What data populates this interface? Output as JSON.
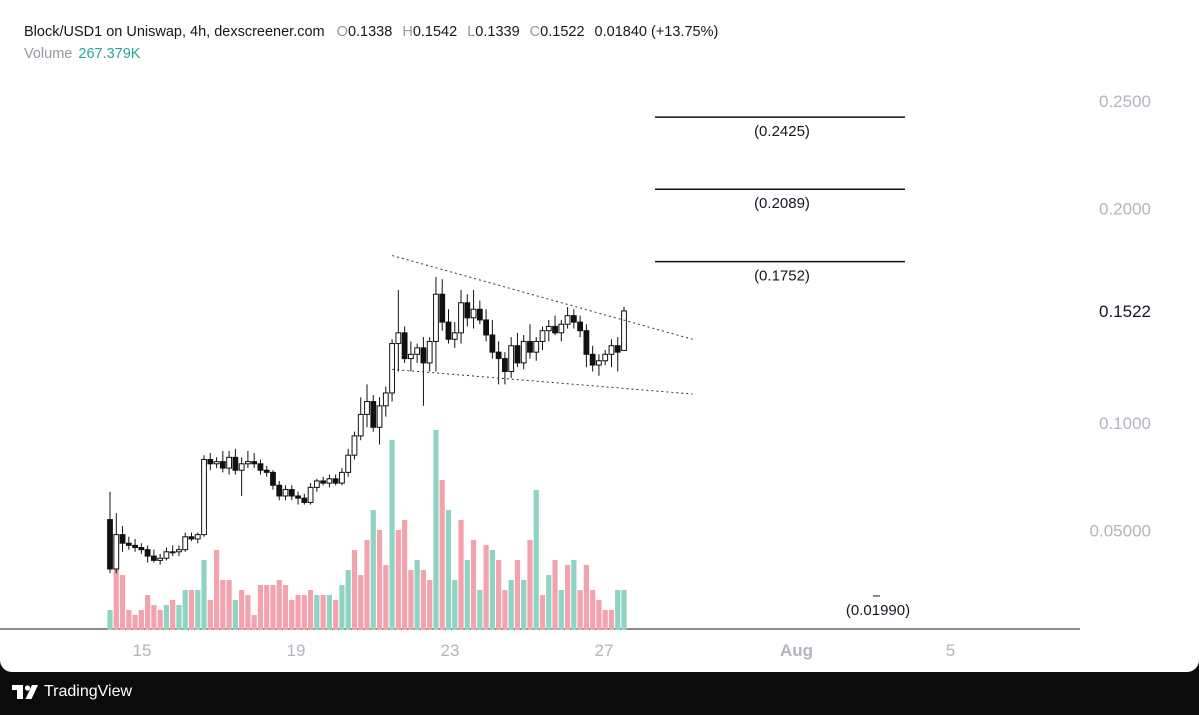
{
  "header": {
    "symbol": "Block/USD1 on Uniswap, 4h, dexscreener.com",
    "o_label": "O",
    "o_value": "0.1338",
    "h_label": "H",
    "h_value": "0.1542",
    "l_label": "L",
    "l_value": "0.1339",
    "c_label": "C",
    "c_value": "0.1522",
    "change": "0.01840 (+13.75%)",
    "volume_label": "Volume",
    "volume_value": "267.379K"
  },
  "footer": {
    "brand": "TradingView",
    "logo_icon": "tradingview-logo-icon"
  },
  "colors": {
    "up_volume": "#8fd3c3",
    "down_volume": "#f2a3ad",
    "candle": "#111111",
    "axis_text": "#b2b5be",
    "last_price_text": "#131722"
  },
  "chart_data": {
    "type": "candlestick",
    "timeframe": "4h",
    "y_ticks": [
      "0.2500",
      "0.2000",
      "0.1000",
      "0.05000"
    ],
    "y_tick_values": [
      0.25,
      0.2,
      0.1,
      0.05
    ],
    "last_price_label": "0.1522",
    "last_price": 0.1522,
    "x_ticks": [
      "15",
      "19",
      "23",
      "27",
      "Aug",
      "5"
    ],
    "x_tick_days": [
      15,
      19,
      23,
      27,
      32,
      36
    ],
    "ylim": [
      0.0,
      0.26
    ],
    "levels": [
      {
        "label": "(0.2425)",
        "value": 0.2425
      },
      {
        "label": "(0.2089)",
        "value": 0.2089
      },
      {
        "label": "(0.1752)",
        "value": 0.1752
      },
      {
        "label": "(0.01990)",
        "value": 0.0199
      }
    ],
    "trendlines": [
      {
        "name": "upper-trendline",
        "from": [
          21.5,
          0.178
        ],
        "to": [
          29.3,
          0.139
        ]
      },
      {
        "name": "lower-trendline",
        "from": [
          21.5,
          0.125
        ],
        "to": [
          29.3,
          0.1135
        ]
      }
    ],
    "candles": [
      [
        0.055,
        0.068,
        0.03,
        0.032
      ],
      [
        0.032,
        0.058,
        0.03,
        0.048
      ],
      [
        0.048,
        0.052,
        0.04,
        0.044
      ],
      [
        0.044,
        0.047,
        0.041,
        0.043
      ],
      [
        0.043,
        0.046,
        0.04,
        0.042
      ],
      [
        0.042,
        0.044,
        0.039,
        0.041
      ],
      [
        0.041,
        0.043,
        0.035,
        0.038
      ],
      [
        0.038,
        0.041,
        0.035,
        0.036
      ],
      [
        0.036,
        0.039,
        0.034,
        0.037
      ],
      [
        0.037,
        0.042,
        0.036,
        0.04
      ],
      [
        0.04,
        0.043,
        0.038,
        0.04
      ],
      [
        0.04,
        0.043,
        0.038,
        0.041
      ],
      [
        0.041,
        0.049,
        0.04,
        0.047
      ],
      [
        0.047,
        0.049,
        0.045,
        0.046
      ],
      [
        0.046,
        0.049,
        0.044,
        0.048
      ],
      [
        0.048,
        0.085,
        0.047,
        0.083
      ],
      [
        0.083,
        0.086,
        0.078,
        0.081
      ],
      [
        0.081,
        0.084,
        0.079,
        0.082
      ],
      [
        0.082,
        0.087,
        0.077,
        0.079
      ],
      [
        0.079,
        0.087,
        0.076,
        0.084
      ],
      [
        0.084,
        0.088,
        0.076,
        0.078
      ],
      [
        0.078,
        0.084,
        0.066,
        0.081
      ],
      [
        0.081,
        0.087,
        0.079,
        0.082
      ],
      [
        0.082,
        0.086,
        0.079,
        0.081
      ],
      [
        0.081,
        0.083,
        0.076,
        0.078
      ],
      [
        0.078,
        0.08,
        0.075,
        0.077
      ],
      [
        0.077,
        0.078,
        0.069,
        0.071
      ],
      [
        0.071,
        0.073,
        0.064,
        0.066
      ],
      [
        0.066,
        0.071,
        0.064,
        0.069
      ],
      [
        0.069,
        0.071,
        0.064,
        0.066
      ],
      [
        0.066,
        0.068,
        0.062,
        0.065
      ],
      [
        0.065,
        0.067,
        0.062,
        0.063
      ],
      [
        0.063,
        0.072,
        0.062,
        0.07
      ],
      [
        0.07,
        0.074,
        0.068,
        0.073
      ],
      [
        0.073,
        0.075,
        0.071,
        0.072
      ],
      [
        0.072,
        0.076,
        0.07,
        0.074
      ],
      [
        0.074,
        0.076,
        0.071,
        0.072
      ],
      [
        0.072,
        0.079,
        0.071,
        0.077
      ],
      [
        0.077,
        0.088,
        0.075,
        0.085
      ],
      [
        0.085,
        0.096,
        0.083,
        0.094
      ],
      [
        0.094,
        0.112,
        0.092,
        0.104
      ],
      [
        0.104,
        0.118,
        0.098,
        0.11
      ],
      [
        0.11,
        0.113,
        0.096,
        0.098
      ],
      [
        0.098,
        0.112,
        0.09,
        0.108
      ],
      [
        0.108,
        0.117,
        0.103,
        0.114
      ],
      [
        0.114,
        0.139,
        0.11,
        0.137
      ],
      [
        0.137,
        0.162,
        0.124,
        0.142
      ],
      [
        0.142,
        0.145,
        0.128,
        0.13
      ],
      [
        0.13,
        0.138,
        0.124,
        0.132
      ],
      [
        0.132,
        0.137,
        0.128,
        0.135
      ],
      [
        0.135,
        0.14,
        0.108,
        0.128
      ],
      [
        0.128,
        0.14,
        0.124,
        0.138
      ],
      [
        0.138,
        0.168,
        0.124,
        0.16
      ],
      [
        0.16,
        0.167,
        0.143,
        0.147
      ],
      [
        0.147,
        0.153,
        0.137,
        0.139
      ],
      [
        0.139,
        0.147,
        0.135,
        0.142
      ],
      [
        0.142,
        0.162,
        0.137,
        0.156
      ],
      [
        0.156,
        0.16,
        0.145,
        0.149
      ],
      [
        0.149,
        0.162,
        0.144,
        0.153
      ],
      [
        0.153,
        0.157,
        0.146,
        0.148
      ],
      [
        0.148,
        0.153,
        0.138,
        0.141
      ],
      [
        0.141,
        0.148,
        0.13,
        0.133
      ],
      [
        0.133,
        0.138,
        0.118,
        0.13
      ],
      [
        0.13,
        0.133,
        0.118,
        0.124
      ],
      [
        0.124,
        0.14,
        0.121,
        0.136
      ],
      [
        0.136,
        0.142,
        0.126,
        0.128
      ],
      [
        0.128,
        0.141,
        0.125,
        0.138
      ],
      [
        0.138,
        0.146,
        0.13,
        0.133
      ],
      [
        0.133,
        0.14,
        0.129,
        0.138
      ],
      [
        0.138,
        0.145,
        0.134,
        0.143
      ],
      [
        0.143,
        0.148,
        0.138,
        0.145
      ],
      [
        0.145,
        0.15,
        0.141,
        0.142
      ],
      [
        0.142,
        0.148,
        0.138,
        0.146
      ],
      [
        0.146,
        0.154,
        0.144,
        0.15
      ],
      [
        0.15,
        0.153,
        0.144,
        0.147
      ],
      [
        0.147,
        0.15,
        0.14,
        0.143
      ],
      [
        0.143,
        0.146,
        0.126,
        0.132
      ],
      [
        0.132,
        0.136,
        0.124,
        0.127
      ],
      [
        0.127,
        0.132,
        0.122,
        0.129
      ],
      [
        0.129,
        0.134,
        0.127,
        0.132
      ],
      [
        0.132,
        0.139,
        0.126,
        0.136
      ],
      [
        0.136,
        0.14,
        0.124,
        0.133
      ],
      [
        0.1338,
        0.1542,
        0.1339,
        0.1522
      ]
    ],
    "volume_scale": [
      0,
      267379
    ],
    "volumes": [
      [
        20,
        "up"
      ],
      [
        70,
        "down"
      ],
      [
        55,
        "down"
      ],
      [
        20,
        "down"
      ],
      [
        15,
        "down"
      ],
      [
        20,
        "down"
      ],
      [
        35,
        "down"
      ],
      [
        25,
        "down"
      ],
      [
        20,
        "down"
      ],
      [
        25,
        "up"
      ],
      [
        30,
        "down"
      ],
      [
        25,
        "up"
      ],
      [
        40,
        "up"
      ],
      [
        40,
        "down"
      ],
      [
        40,
        "up"
      ],
      [
        70,
        "up"
      ],
      [
        30,
        "down"
      ],
      [
        80,
        "down"
      ],
      [
        50,
        "down"
      ],
      [
        50,
        "down"
      ],
      [
        30,
        "up"
      ],
      [
        40,
        "down"
      ],
      [
        35,
        "down"
      ],
      [
        15,
        "down"
      ],
      [
        45,
        "down"
      ],
      [
        45,
        "down"
      ],
      [
        45,
        "down"
      ],
      [
        50,
        "down"
      ],
      [
        45,
        "down"
      ],
      [
        30,
        "down"
      ],
      [
        35,
        "down"
      ],
      [
        35,
        "down"
      ],
      [
        40,
        "down"
      ],
      [
        35,
        "up"
      ],
      [
        35,
        "down"
      ],
      [
        35,
        "up"
      ],
      [
        30,
        "down"
      ],
      [
        45,
        "up"
      ],
      [
        60,
        "up"
      ],
      [
        80,
        "down"
      ],
      [
        55,
        "down"
      ],
      [
        90,
        "down"
      ],
      [
        120,
        "up"
      ],
      [
        100,
        "down"
      ],
      [
        65,
        "down"
      ],
      [
        190,
        "up"
      ],
      [
        100,
        "down"
      ],
      [
        110,
        "down"
      ],
      [
        60,
        "down"
      ],
      [
        70,
        "up"
      ],
      [
        60,
        "down"
      ],
      [
        50,
        "down"
      ],
      [
        200,
        "up"
      ],
      [
        150,
        "down"
      ],
      [
        120,
        "up"
      ],
      [
        50,
        "up"
      ],
      [
        110,
        "down"
      ],
      [
        70,
        "up"
      ],
      [
        90,
        "down"
      ],
      [
        40,
        "up"
      ],
      [
        85,
        "down"
      ],
      [
        80,
        "up"
      ],
      [
        70,
        "down"
      ],
      [
        40,
        "down"
      ],
      [
        50,
        "up"
      ],
      [
        70,
        "down"
      ],
      [
        50,
        "up"
      ],
      [
        90,
        "down"
      ],
      [
        140,
        "up"
      ],
      [
        35,
        "down"
      ],
      [
        55,
        "up"
      ],
      [
        70,
        "down"
      ],
      [
        40,
        "up"
      ],
      [
        65,
        "down"
      ],
      [
        70,
        "up"
      ],
      [
        40,
        "down"
      ],
      [
        65,
        "down"
      ],
      [
        40,
        "down"
      ],
      [
        30,
        "down"
      ],
      [
        20,
        "down"
      ],
      [
        20,
        "down"
      ],
      [
        40,
        "up"
      ],
      [
        40,
        "up"
      ]
    ]
  }
}
